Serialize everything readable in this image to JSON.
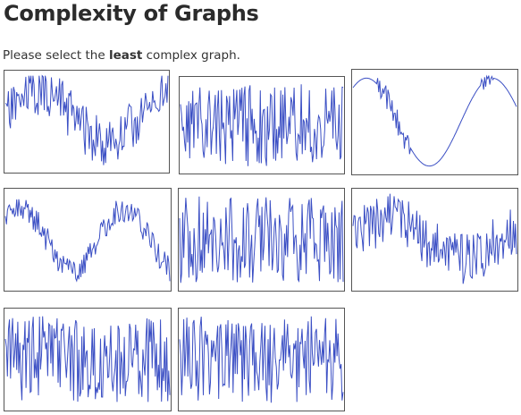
{
  "page": {
    "title": "Complexity of Graphs",
    "instruction_before": "Please select the ",
    "instruction_bold": "least",
    "instruction_after": " complex graph."
  },
  "colors": {
    "line": "#3b4fc4",
    "border": "#555555"
  },
  "graphs": [
    {
      "id": "graph-1",
      "complexity": "medium",
      "seed": 11,
      "shape": "wave2"
    },
    {
      "id": "graph-2",
      "complexity": "high",
      "seed": 23,
      "shape": "noise"
    },
    {
      "id": "graph-3",
      "complexity": "low",
      "seed": 5,
      "shape": "sine"
    },
    {
      "id": "graph-4",
      "complexity": "medium",
      "seed": 37,
      "shape": "wave1"
    },
    {
      "id": "graph-5",
      "complexity": "high",
      "seed": 41,
      "shape": "noise"
    },
    {
      "id": "graph-6",
      "complexity": "medium-high",
      "seed": 53,
      "shape": "wave3"
    },
    {
      "id": "graph-7",
      "complexity": "high",
      "seed": 67,
      "shape": "noise"
    },
    {
      "id": "graph-8",
      "complexity": "high",
      "seed": 79,
      "shape": "noise"
    }
  ]
}
